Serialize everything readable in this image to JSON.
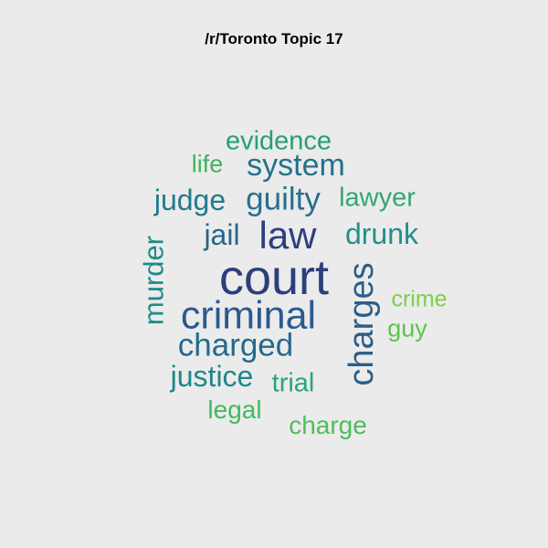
{
  "title": "/r/Toronto Topic 17",
  "words": [
    {
      "text": "court",
      "color": "#2c3f7c"
    },
    {
      "text": "law",
      "color": "#2e3f7f"
    },
    {
      "text": "criminal",
      "color": "#2a5a8e"
    },
    {
      "text": "charges",
      "color": "#2c5e8a"
    },
    {
      "text": "guilty",
      "color": "#27708e"
    },
    {
      "text": "system",
      "color": "#23728d"
    },
    {
      "text": "charged",
      "color": "#226a8c"
    },
    {
      "text": "judge",
      "color": "#237a8c"
    },
    {
      "text": "jail",
      "color": "#27658c"
    },
    {
      "text": "murder",
      "color": "#1f8a88"
    },
    {
      "text": "drunk",
      "color": "#21908c"
    },
    {
      "text": "justice",
      "color": "#1f868a"
    },
    {
      "text": "evidence",
      "color": "#27a070"
    },
    {
      "text": "lawyer",
      "color": "#31a872"
    },
    {
      "text": "trial",
      "color": "#2aa478"
    },
    {
      "text": "life",
      "color": "#41b35f"
    },
    {
      "text": "legal",
      "color": "#3fbb5c"
    },
    {
      "text": "charge",
      "color": "#4cbf5a"
    },
    {
      "text": "guy",
      "color": "#5bc54a"
    },
    {
      "text": "crime",
      "color": "#7cd04a"
    }
  ]
}
